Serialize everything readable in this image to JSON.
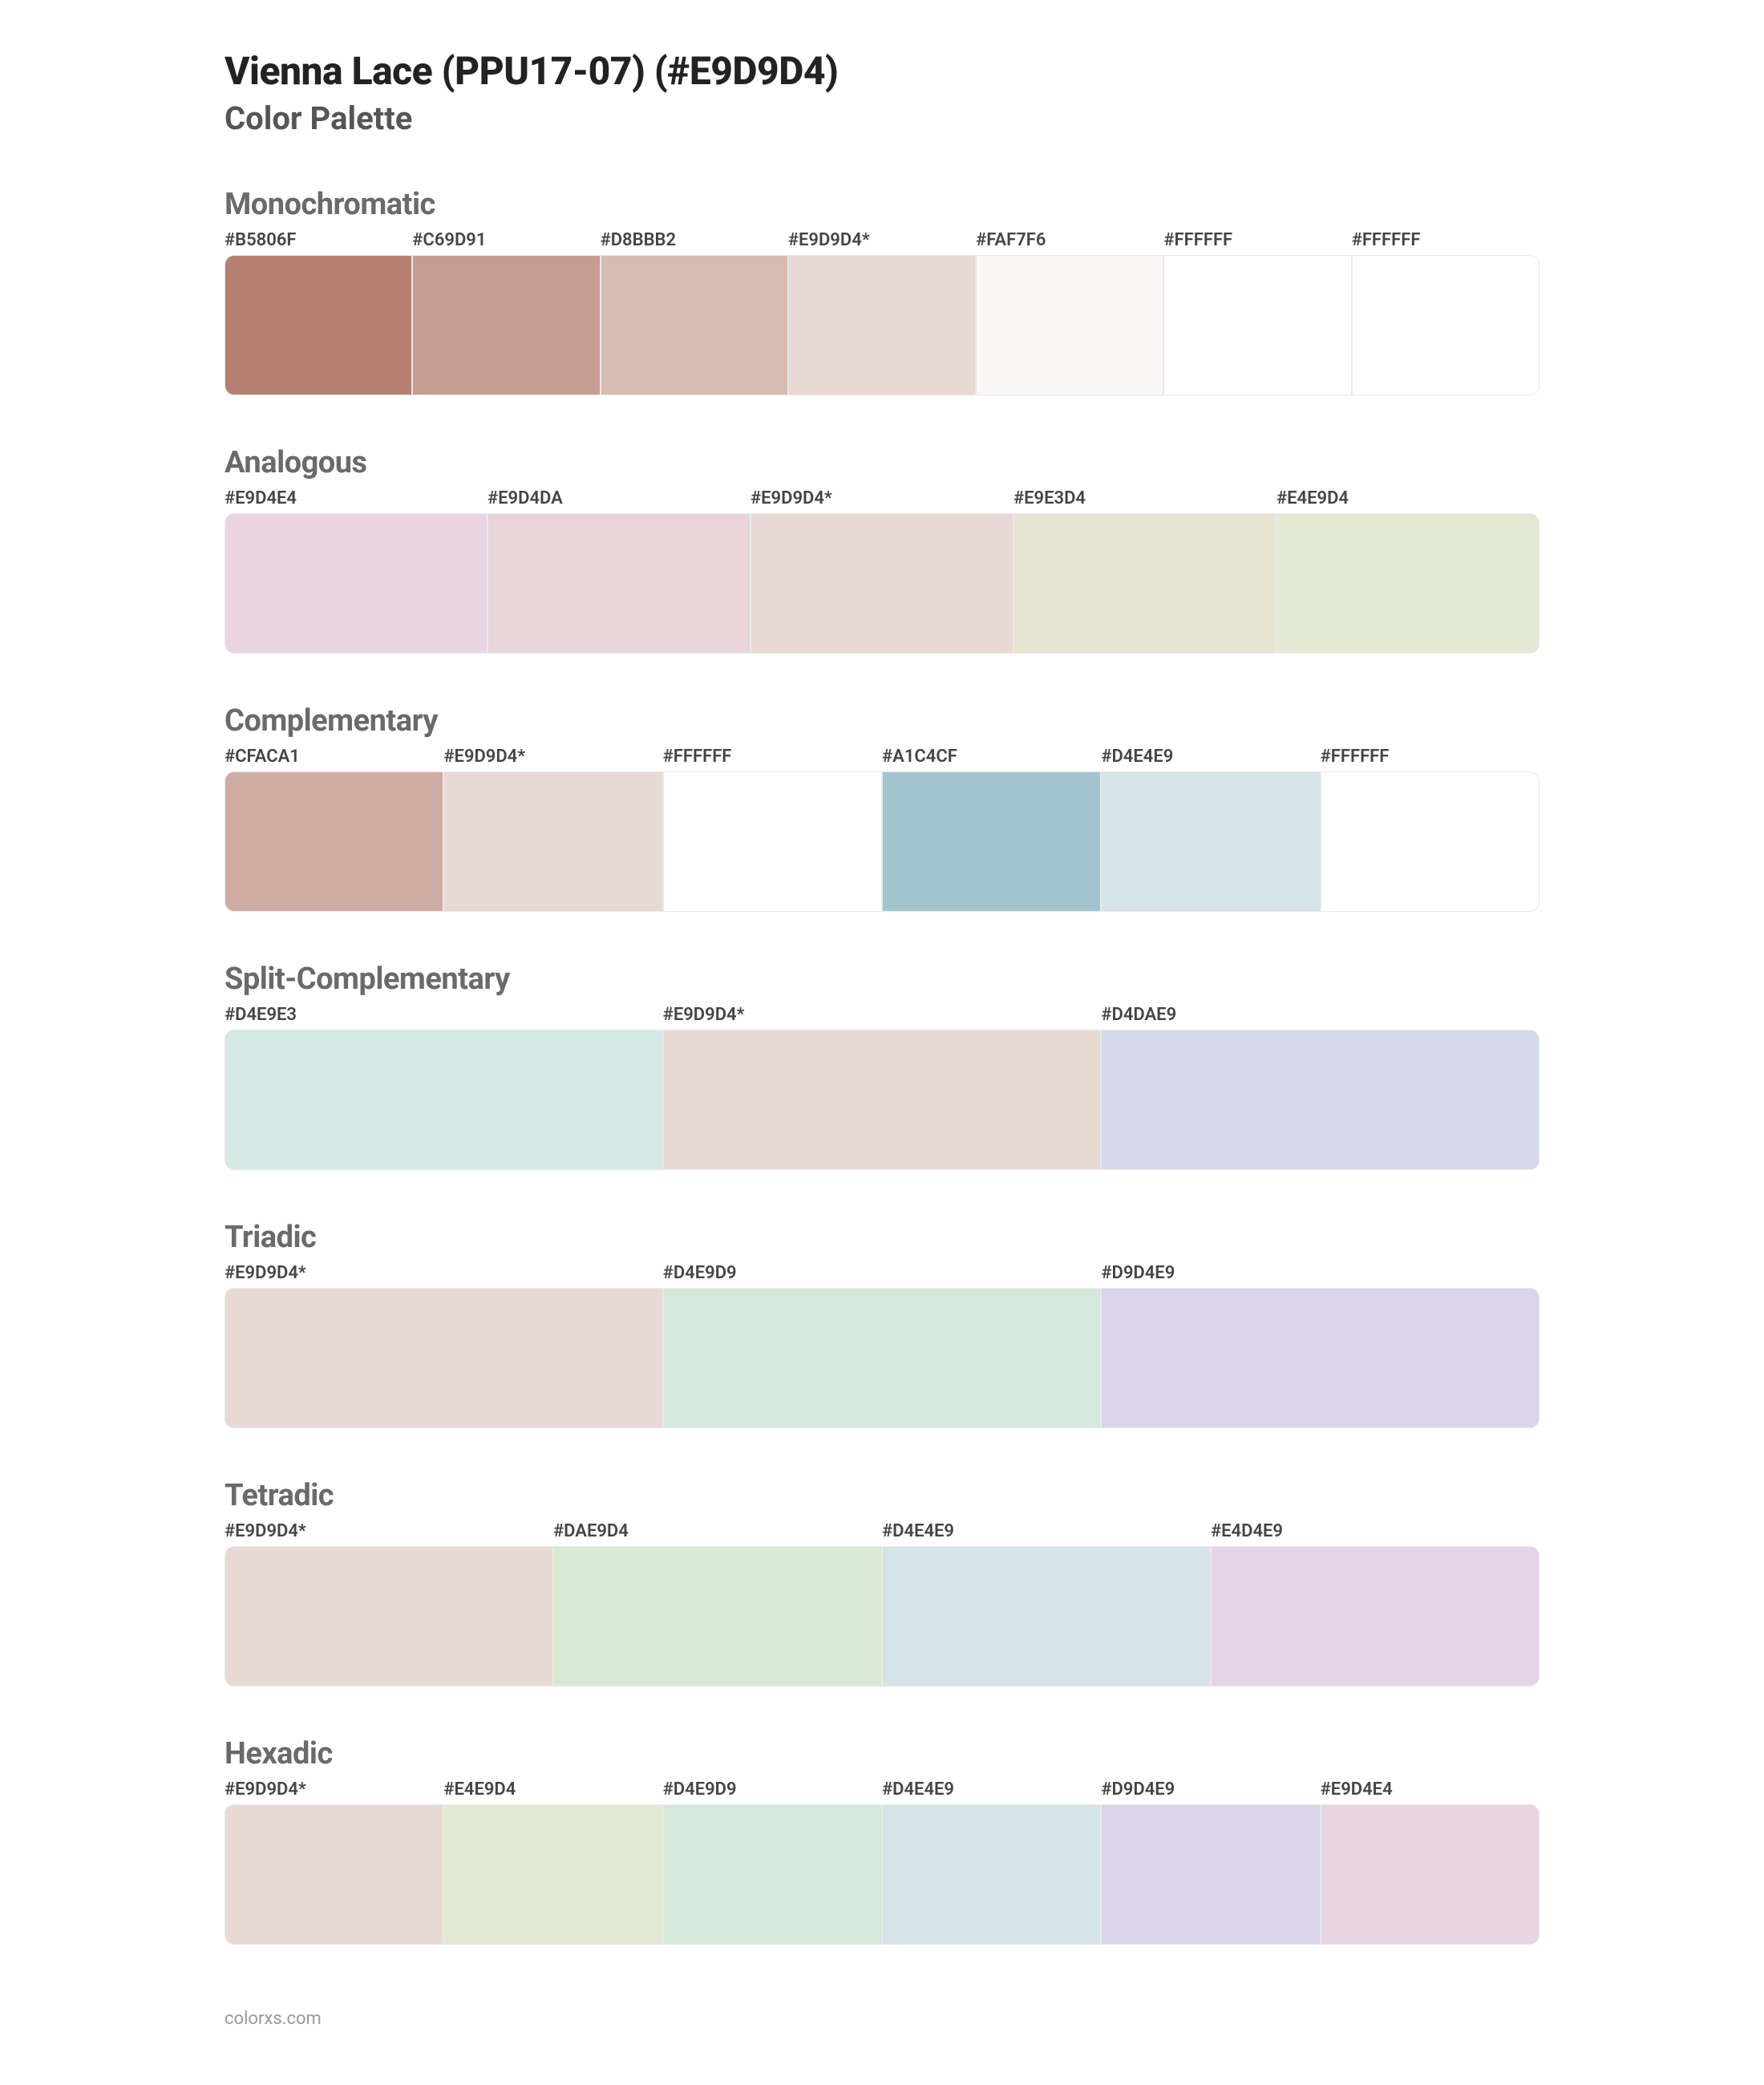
{
  "title": "Vienna Lace (PPU17-07) (#E9D9D4)",
  "subtitle": "Color Palette",
  "footer": "colorxs.com",
  "title_color": "#222222",
  "subtitle_color": "#555555",
  "section_title_color": "#6a6a6a",
  "label_color": "#444444",
  "section_title_fontsize": 38,
  "label_fontsize": 22,
  "swatch_height": 175,
  "swatch_border_color": "#e9e9e9",
  "swatch_border_radius": 12,
  "sections": [
    {
      "name": "Monochromatic",
      "swatches": [
        {
          "label": "#B5806F",
          "color": "#B5806F"
        },
        {
          "label": "#C69D91",
          "color": "#C69D91"
        },
        {
          "label": "#D8BBB2",
          "color": "#D8BBB2"
        },
        {
          "label": "#E9D9D4*",
          "color": "#E9D9D4"
        },
        {
          "label": "#FAF7F6",
          "color": "#FAF7F6"
        },
        {
          "label": "#FFFFFF",
          "color": "#FFFFFF"
        },
        {
          "label": "#FFFFFF",
          "color": "#FFFFFF"
        }
      ]
    },
    {
      "name": "Analogous",
      "swatches": [
        {
          "label": "#E9D4E4",
          "color": "#E9D4E4"
        },
        {
          "label": "#E9D4DA",
          "color": "#E9D4DA"
        },
        {
          "label": "#E9D9D4*",
          "color": "#E9D9D4"
        },
        {
          "label": "#E9E3D4",
          "color": "#E9E3D4"
        },
        {
          "label": "#E4E9D4",
          "color": "#E4E9D4"
        }
      ]
    },
    {
      "name": "Complementary",
      "swatches": [
        {
          "label": "#CFACA1",
          "color": "#CFACA1"
        },
        {
          "label": "#E9D9D4*",
          "color": "#E9D9D4"
        },
        {
          "label": "#FFFFFF",
          "color": "#FFFFFF"
        },
        {
          "label": "#A1C4CF",
          "color": "#A1C4CF"
        },
        {
          "label": "#D4E4E9",
          "color": "#D4E4E9"
        },
        {
          "label": "#FFFFFF",
          "color": "#FFFFFF"
        }
      ]
    },
    {
      "name": "Split-Complementary",
      "swatches": [
        {
          "label": "#D4E9E3",
          "color": "#D4E9E3"
        },
        {
          "label": "#E9D9D4*",
          "color": "#E9D9D4"
        },
        {
          "label": "#D4DAE9",
          "color": "#D4DAE9"
        }
      ]
    },
    {
      "name": "Triadic",
      "swatches": [
        {
          "label": "#E9D9D4*",
          "color": "#E9D9D4"
        },
        {
          "label": "#D4E9D9",
          "color": "#D4E9D9"
        },
        {
          "label": "#D9D4E9",
          "color": "#D9D4E9"
        }
      ]
    },
    {
      "name": "Tetradic",
      "swatches": [
        {
          "label": "#E9D9D4*",
          "color": "#E9D9D4"
        },
        {
          "label": "#DAE9D4",
          "color": "#DAE9D4"
        },
        {
          "label": "#D4E4E9",
          "color": "#D4E4E9"
        },
        {
          "label": "#E4D4E9",
          "color": "#E4D4E9"
        }
      ]
    },
    {
      "name": "Hexadic",
      "swatches": [
        {
          "label": "#E9D9D4*",
          "color": "#E9D9D4"
        },
        {
          "label": "#E4E9D4",
          "color": "#E4E9D4"
        },
        {
          "label": "#D4E9D9",
          "color": "#D4E9D9"
        },
        {
          "label": "#D4E4E9",
          "color": "#D4E4E9"
        },
        {
          "label": "#D9D4E9",
          "color": "#D9D4E9"
        },
        {
          "label": "#E9D4E4",
          "color": "#E9D4E4"
        }
      ]
    }
  ]
}
